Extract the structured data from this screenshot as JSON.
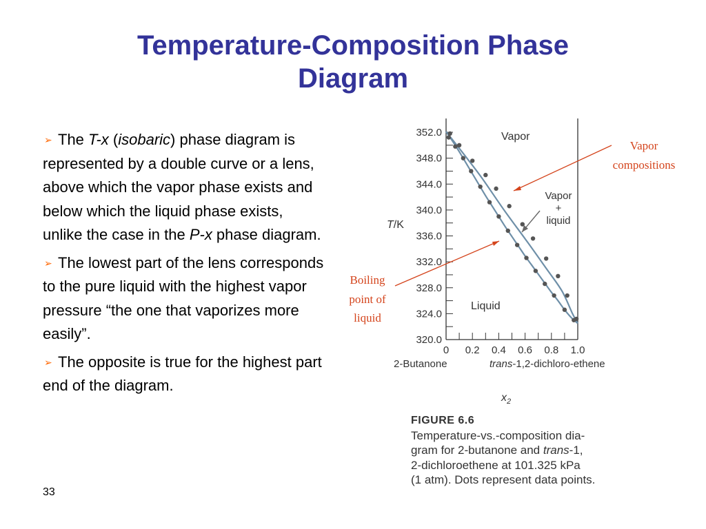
{
  "slide": {
    "title_line1": "Temperature-Composition Phase",
    "title_line2": "Diagram",
    "page_number": "33"
  },
  "bullets": [
    {
      "icon": "arrow-bullet-icon",
      "parts": [
        "The ",
        "T-x",
        " (",
        "isobaric",
        ") phase diagram is represented by a double curve or a lens, above which the vapor phase exists and below which the liquid phase exists, unlike the case in the ",
        "P-x",
        " phase diagram."
      ]
    },
    {
      "icon": "arrow-bullet-icon",
      "text": "The lowest part of the lens corresponds to the pure liquid with the highest vapor pressure “the one that vaporizes more easily”."
    },
    {
      "icon": "arrow-bullet-icon",
      "text": "The opposite is true for the highest part end of the diagram."
    }
  ],
  "figure": {
    "caption_head": "FIGURE 6.6",
    "caption_line1": "Temperature-vs.-composition dia-",
    "caption_line2_pre": "gram for 2-butanone and ",
    "caption_line2_it": "trans",
    "caption_line2_post": "-1,",
    "caption_line3": "2-dichloroethene at 101.325 kPa",
    "caption_line4": "(1 atm). Dots represent data points.",
    "annotations": {
      "vapor_compositions_1": "Vapor",
      "vapor_compositions_2": "compositions",
      "boiling_1": "Boiling",
      "boiling_2": "point of",
      "boiling_3": "liquid"
    },
    "colors": {
      "curve": "#6e8fa8",
      "dots": "#555555",
      "annotation": "#d4441c",
      "title": "#333399"
    }
  },
  "chart_data": {
    "type": "line",
    "ylabel_T": "T",
    "ylabel_unit": "/K",
    "xlabel": "x",
    "xlabel_sub": "2",
    "x_left_label": "2-Butanone",
    "x_right_label_it": "trans",
    "x_right_label": "-1,2-dichloro-ethene",
    "ylim": [
      320.0,
      352.0
    ],
    "xlim": [
      0,
      1.0
    ],
    "y_ticks": [
      "352.0",
      "348.0",
      "344.0",
      "340.0",
      "336.0",
      "332.0",
      "328.0",
      "324.0",
      "320.0"
    ],
    "x_ticks": [
      "0",
      "0.2",
      "0.4",
      "0.6",
      "0.8",
      "1.0"
    ],
    "regions": {
      "vapor": "Vapor",
      "two_phase_1": "Vapor",
      "two_phase_2": "+",
      "two_phase_3": "liquid",
      "liquid": "Liquid"
    },
    "series": [
      {
        "x": [
          0.0,
          0.12,
          0.27,
          0.44,
          0.62,
          0.76,
          0.88,
          0.96,
          1.0
        ],
        "y": [
          352.1,
          349.0,
          345.0,
          340.0,
          335.0,
          331.0,
          327.5,
          324.0,
          322.5
        ]
      },
      {
        "x": [
          0.0,
          0.05,
          0.1,
          0.15,
          0.2,
          0.25,
          0.3,
          0.35,
          0.4,
          0.45,
          0.5,
          0.55,
          0.6,
          0.65,
          0.7,
          0.75,
          0.8,
          0.85,
          0.9,
          0.95,
          1.0
        ],
        "y": [
          352.1,
          350.6,
          349.0,
          347.3,
          345.6,
          343.9,
          342.2,
          340.6,
          339.0,
          337.4,
          335.9,
          334.4,
          332.9,
          331.5,
          330.1,
          328.7,
          327.3,
          326.0,
          324.6,
          323.4,
          322.5
        ]
      }
    ],
    "points": [
      {
        "x": 0.02,
        "y": 351.2
      },
      {
        "x": 0.07,
        "y": 349.8
      },
      {
        "x": 0.13,
        "y": 348.0
      },
      {
        "x": 0.19,
        "y": 346.0
      },
      {
        "x": 0.26,
        "y": 343.6
      },
      {
        "x": 0.33,
        "y": 341.2
      },
      {
        "x": 0.4,
        "y": 339.0
      },
      {
        "x": 0.47,
        "y": 336.8
      },
      {
        "x": 0.54,
        "y": 334.6
      },
      {
        "x": 0.61,
        "y": 332.6
      },
      {
        "x": 0.68,
        "y": 330.6
      },
      {
        "x": 0.75,
        "y": 328.6
      },
      {
        "x": 0.82,
        "y": 326.8
      },
      {
        "x": 0.9,
        "y": 324.6
      },
      {
        "x": 0.97,
        "y": 323.0
      },
      {
        "x": 0.03,
        "y": 351.8
      },
      {
        "x": 0.1,
        "y": 350.0
      },
      {
        "x": 0.2,
        "y": 347.6
      },
      {
        "x": 0.3,
        "y": 345.4
      },
      {
        "x": 0.38,
        "y": 343.3
      },
      {
        "x": 0.48,
        "y": 340.6
      },
      {
        "x": 0.58,
        "y": 337.8
      },
      {
        "x": 0.66,
        "y": 335.6
      },
      {
        "x": 0.76,
        "y": 332.5
      },
      {
        "x": 0.85,
        "y": 329.8
      },
      {
        "x": 0.92,
        "y": 326.8
      },
      {
        "x": 0.99,
        "y": 323.2
      }
    ]
  }
}
